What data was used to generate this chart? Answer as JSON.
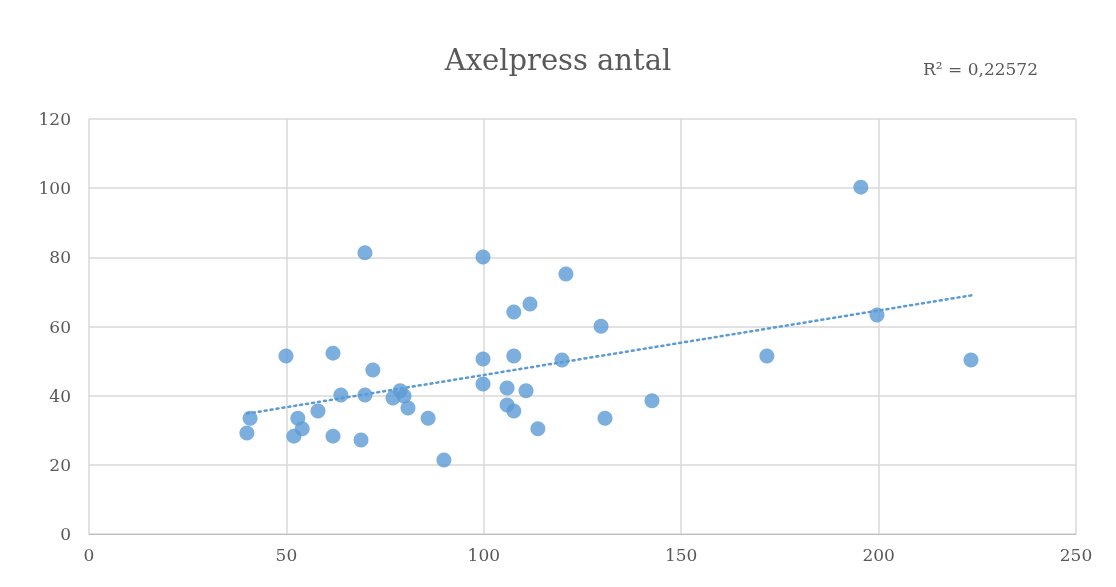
{
  "chart_data": {
    "type": "scatter",
    "title": "Axelpress antal",
    "annotations": [
      "R² = 0,22572"
    ],
    "series": [
      {
        "color": "#5b9bd5",
        "marker": "circle",
        "x": [
          40,
          40.8,
          49.9,
          51.9,
          52.9,
          54,
          58,
          61.8,
          61.8,
          63.8,
          68.9,
          69.9,
          69.9,
          71.9,
          77,
          78.8,
          79.8,
          80.8,
          85.9,
          89.9,
          99.8,
          99.8,
          99.8,
          105.9,
          105.9,
          107.6,
          107.6,
          107.6,
          110.7,
          111.7,
          113.7,
          120.8,
          119.8,
          129.7,
          130.7,
          142.6,
          171.7,
          195.5,
          199.6,
          223.4
        ],
        "values": [
          29.2,
          33.5,
          51.5,
          28.3,
          33.5,
          30.4,
          35.6,
          52.3,
          28.3,
          40.2,
          27.2,
          81.3,
          40.2,
          47.4,
          39.3,
          41.4,
          39.9,
          36.4,
          33.5,
          21.4,
          80.1,
          50.6,
          43.4,
          42.2,
          37.3,
          64.2,
          51.5,
          35.6,
          41.4,
          66.5,
          30.4,
          75.2,
          50.3,
          60.1,
          33.5,
          38.5,
          51.5,
          100.3,
          63.3,
          50.3
        ]
      },
      {
        "type": "line",
        "color": "#5b9bd5",
        "line_style": "dotted",
        "x": [
          40,
          224
        ],
        "values": [
          34.8,
          69.1
        ]
      }
    ],
    "xlim": [
      0,
      250
    ],
    "xticks": [
      0,
      50,
      100,
      150,
      200,
      250
    ],
    "ylim": [
      0,
      120
    ],
    "yticks": [
      0,
      20,
      40,
      60,
      80,
      100,
      120
    ],
    "grid": true
  }
}
